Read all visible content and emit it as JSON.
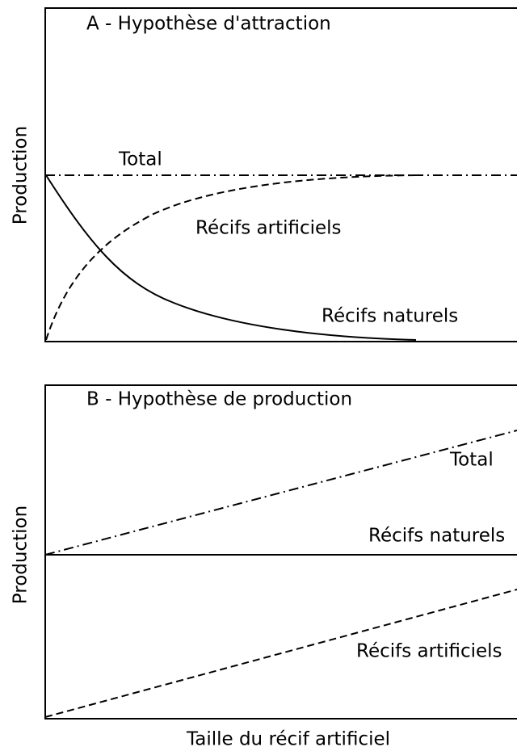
{
  "panels": [
    {
      "title": "A - Hypothèse d'attraction",
      "y_label": "Production",
      "total": "Total",
      "artificial": "Récifs artificiels",
      "natural": "Récifs naturels"
    },
    {
      "title": "B - Hypothèse de production",
      "y_label": "Production",
      "total": "Total",
      "natural": "Récifs naturels",
      "artificial": "Récifs artificiels"
    }
  ],
  "x_label": "Taille du récif artificiel"
}
